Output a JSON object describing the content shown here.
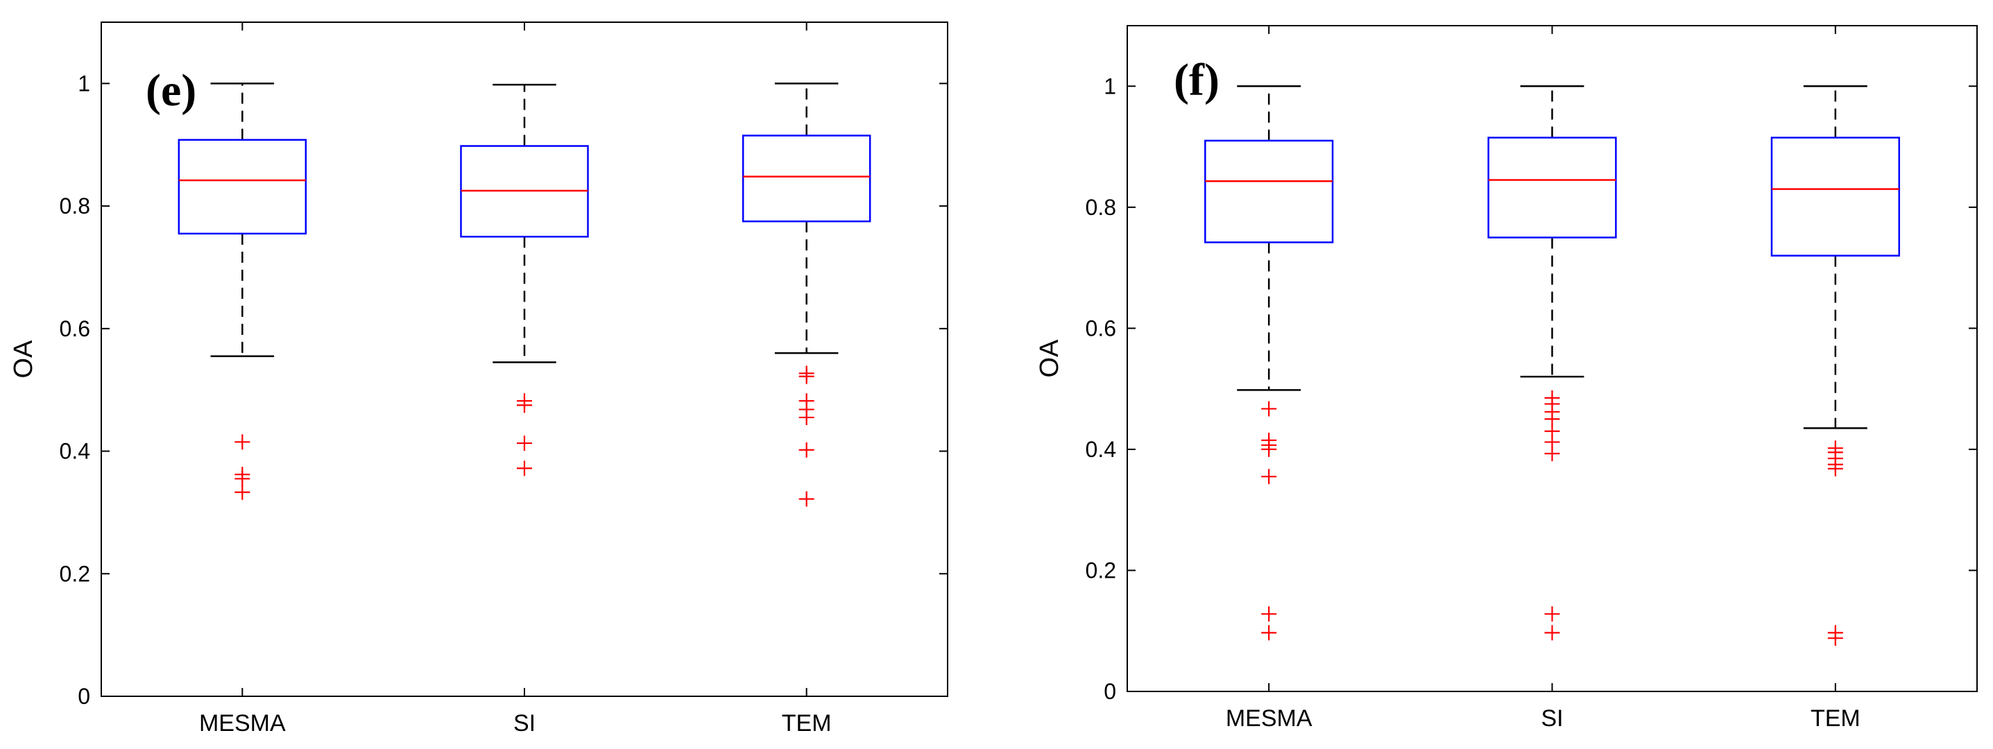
{
  "colors": {
    "box": "#0000ff",
    "median": "#ff0000",
    "outlier": "#ff0000",
    "whisker": "#000000",
    "axis": "#000000"
  },
  "chart_data": [
    {
      "type": "box",
      "panel_label": "(e)",
      "ylabel": "OA",
      "xlabel": "",
      "ylim": [
        0,
        1.1
      ],
      "yticks": [
        0,
        0.2,
        0.4,
        0.6,
        0.8,
        1
      ],
      "ytick_labels": [
        "0",
        "0.2",
        "0.4",
        "0.6",
        "0.8",
        "1"
      ],
      "categories": [
        "MESMA",
        "SI",
        "TEM"
      ],
      "boxes": [
        {
          "name": "MESMA",
          "whisker_low": 0.555,
          "q1": 0.755,
          "median": 0.842,
          "q3": 0.908,
          "whisker_high": 1.0,
          "outliers": [
            0.415,
            0.362,
            0.355,
            0.333
          ]
        },
        {
          "name": "SI",
          "whisker_low": 0.545,
          "q1": 0.75,
          "median": 0.825,
          "q3": 0.898,
          "whisker_high": 0.998,
          "outliers": [
            0.482,
            0.475,
            0.413,
            0.372
          ]
        },
        {
          "name": "TEM",
          "whisker_low": 0.56,
          "q1": 0.775,
          "median": 0.848,
          "q3": 0.915,
          "whisker_high": 1.0,
          "outliers": [
            0.527,
            0.522,
            0.482,
            0.468,
            0.455,
            0.402,
            0.322
          ]
        }
      ]
    },
    {
      "type": "box",
      "panel_label": "(f)",
      "ylabel": "OA",
      "xlabel": "",
      "ylim": [
        0,
        1.1
      ],
      "yticks": [
        0,
        0.2,
        0.4,
        0.6,
        0.8,
        1
      ],
      "ytick_labels": [
        "0",
        "0.2",
        "0.4",
        "0.6",
        "0.8",
        "1"
      ],
      "categories": [
        "MESMA",
        "SI",
        "TEM"
      ],
      "boxes": [
        {
          "name": "MESMA",
          "whisker_low": 0.498,
          "q1": 0.742,
          "median": 0.843,
          "q3": 0.91,
          "whisker_high": 1.0,
          "outliers": [
            0.467,
            0.415,
            0.407,
            0.4,
            0.355,
            0.128,
            0.097
          ]
        },
        {
          "name": "SI",
          "whisker_low": 0.52,
          "q1": 0.75,
          "median": 0.845,
          "q3": 0.915,
          "whisker_high": 1.0,
          "outliers": [
            0.485,
            0.475,
            0.462,
            0.45,
            0.43,
            0.412,
            0.393,
            0.128,
            0.097
          ]
        },
        {
          "name": "TEM",
          "whisker_low": 0.435,
          "q1": 0.72,
          "median": 0.83,
          "q3": 0.915,
          "whisker_high": 1.0,
          "outliers": [
            0.402,
            0.395,
            0.385,
            0.375,
            0.368,
            0.097,
            0.088
          ]
        }
      ]
    }
  ]
}
